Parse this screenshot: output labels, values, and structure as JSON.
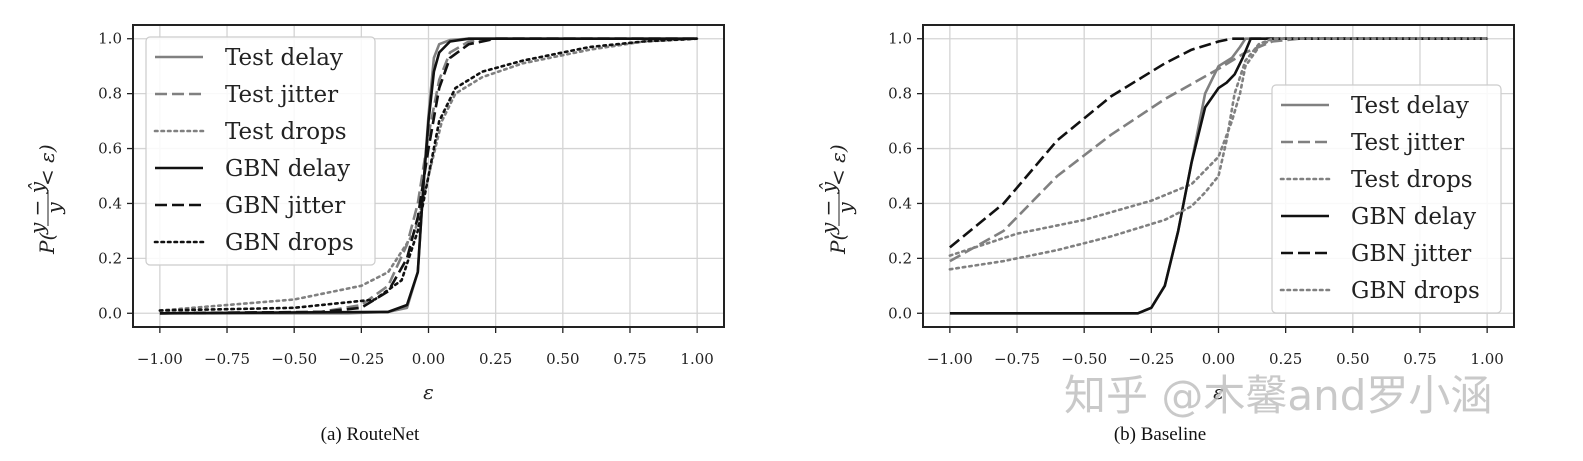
{
  "chart_data": [
    {
      "type": "line",
      "caption": "(a) RouteNet",
      "xlabel": "ε",
      "ylabel": "P(",
      "ylabel_frac_num": "y − ŷ",
      "ylabel_frac_den": "y",
      "ylabel_tail": "< ε)",
      "xlim": [
        -1.1,
        1.1
      ],
      "ylim": [
        -0.05,
        1.05
      ],
      "xticks": [
        "−1.00",
        "−0.75",
        "−0.50",
        "−0.25",
        "0.00",
        "0.25",
        "0.50",
        "0.75",
        "1.00"
      ],
      "yticks": [
        "0.0",
        "0.2",
        "0.4",
        "0.6",
        "0.8",
        "1.0"
      ],
      "grid": true,
      "legend_position": "top-left",
      "series": [
        {
          "name": "Test delay",
          "color": "#808080",
          "dash": "solid",
          "x": [
            -1.0,
            -0.3,
            -0.15,
            -0.08,
            -0.04,
            -0.02,
            0.0,
            0.02,
            0.04,
            0.08,
            0.15,
            1.0
          ],
          "y": [
            0.0,
            0.0,
            0.005,
            0.02,
            0.15,
            0.45,
            0.72,
            0.93,
            0.98,
            0.995,
            1.0,
            1.0
          ]
        },
        {
          "name": "Test jitter",
          "color": "#808080",
          "dash": "dashed",
          "x": [
            -1.0,
            -0.4,
            -0.25,
            -0.15,
            -0.08,
            -0.04,
            0.0,
            0.04,
            0.08,
            0.15,
            0.25,
            1.0
          ],
          "y": [
            0.0,
            0.005,
            0.03,
            0.1,
            0.25,
            0.4,
            0.65,
            0.85,
            0.95,
            0.99,
            1.0,
            1.0
          ]
        },
        {
          "name": "Test drops",
          "color": "#808080",
          "dash": "dotted",
          "x": [
            -1.0,
            -0.5,
            -0.25,
            -0.15,
            -0.05,
            0.0,
            0.05,
            0.1,
            0.2,
            0.35,
            0.6,
            0.8,
            1.0
          ],
          "y": [
            0.01,
            0.05,
            0.1,
            0.15,
            0.3,
            0.5,
            0.7,
            0.8,
            0.86,
            0.91,
            0.96,
            0.99,
            1.0
          ]
        },
        {
          "name": "GBN delay",
          "color": "#111111",
          "dash": "solid",
          "x": [
            -1.0,
            -0.15,
            -0.08,
            -0.04,
            -0.02,
            0.0,
            0.02,
            0.04,
            0.08,
            0.15,
            1.0
          ],
          "y": [
            0.0,
            0.005,
            0.03,
            0.15,
            0.45,
            0.7,
            0.88,
            0.95,
            0.99,
            1.0,
            1.0
          ]
        },
        {
          "name": "GBN jitter",
          "color": "#111111",
          "dash": "dashed",
          "x": [
            -1.0,
            -0.4,
            -0.25,
            -0.15,
            -0.08,
            -0.04,
            0.0,
            0.04,
            0.08,
            0.15,
            0.25,
            1.0
          ],
          "y": [
            0.0,
            0.005,
            0.02,
            0.08,
            0.2,
            0.35,
            0.6,
            0.82,
            0.93,
            0.98,
            1.0,
            1.0
          ]
        },
        {
          "name": "GBN drops",
          "color": "#111111",
          "dash": "dotted",
          "x": [
            -1.0,
            -0.5,
            -0.2,
            -0.1,
            -0.04,
            0.0,
            0.04,
            0.1,
            0.2,
            0.35,
            0.6,
            0.8,
            1.0
          ],
          "y": [
            0.01,
            0.02,
            0.05,
            0.12,
            0.3,
            0.5,
            0.7,
            0.82,
            0.88,
            0.92,
            0.97,
            0.99,
            1.0
          ]
        }
      ]
    },
    {
      "type": "line",
      "caption": "(b) Baseline",
      "xlabel": "ε",
      "ylabel": "P(",
      "ylabel_frac_num": "y − ŷ",
      "ylabel_frac_den": "y",
      "ylabel_tail": "< ε)",
      "xlim": [
        -1.1,
        1.1
      ],
      "ylim": [
        -0.05,
        1.05
      ],
      "xticks": [
        "−1.00",
        "−0.75",
        "−0.50",
        "−0.25",
        "0.00",
        "0.25",
        "0.50",
        "0.75",
        "1.00"
      ],
      "yticks": [
        "0.0",
        "0.2",
        "0.4",
        "0.6",
        "0.8",
        "1.0"
      ],
      "grid": true,
      "legend_position": "center-right",
      "series": [
        {
          "name": "Test delay",
          "color": "#808080",
          "dash": "solid",
          "x": [
            -1.0,
            -0.3,
            -0.25,
            -0.2,
            -0.15,
            -0.1,
            -0.05,
            0.0,
            0.05,
            0.08,
            0.1,
            1.0
          ],
          "y": [
            0.0,
            0.0,
            0.02,
            0.1,
            0.3,
            0.55,
            0.8,
            0.9,
            0.93,
            0.97,
            1.0,
            1.0
          ]
        },
        {
          "name": "Test jitter",
          "color": "#808080",
          "dash": "dashed",
          "x": [
            -1.0,
            -0.8,
            -0.6,
            -0.4,
            -0.2,
            0.0,
            0.1,
            0.2,
            0.3,
            0.5,
            1.0
          ],
          "y": [
            0.19,
            0.3,
            0.5,
            0.65,
            0.78,
            0.89,
            0.95,
            0.99,
            1.0,
            1.0,
            1.0
          ]
        },
        {
          "name": "Test drops",
          "color": "#808080",
          "dash": "dotted",
          "x": [
            -1.0,
            -0.75,
            -0.5,
            -0.25,
            -0.1,
            0.0,
            0.05,
            0.08,
            0.1,
            0.15,
            0.2,
            1.0
          ],
          "y": [
            0.21,
            0.29,
            0.34,
            0.41,
            0.47,
            0.57,
            0.7,
            0.8,
            0.9,
            0.97,
            1.0,
            1.0
          ]
        },
        {
          "name": "GBN delay",
          "color": "#111111",
          "dash": "solid",
          "x": [
            -1.0,
            -0.3,
            -0.25,
            -0.2,
            -0.15,
            -0.1,
            -0.05,
            0.0,
            0.03,
            0.06,
            0.09,
            0.12,
            1.0
          ],
          "y": [
            0.0,
            0.0,
            0.02,
            0.1,
            0.3,
            0.55,
            0.75,
            0.82,
            0.84,
            0.87,
            0.93,
            1.0,
            1.0
          ]
        },
        {
          "name": "GBN jitter",
          "color": "#111111",
          "dash": "dashed",
          "x": [
            -1.0,
            -0.8,
            -0.6,
            -0.4,
            -0.2,
            -0.1,
            0.0,
            0.05,
            0.1,
            1.0
          ],
          "y": [
            0.24,
            0.4,
            0.63,
            0.79,
            0.91,
            0.96,
            0.99,
            1.0,
            1.0,
            1.0
          ]
        },
        {
          "name": "GBN drops",
          "color": "#808080",
          "dash": "dotted",
          "x": [
            -1.0,
            -0.8,
            -0.6,
            -0.4,
            -0.2,
            -0.1,
            -0.05,
            0.0,
            0.03,
            0.06,
            0.1,
            0.15,
            0.2,
            1.0
          ],
          "y": [
            0.16,
            0.19,
            0.23,
            0.28,
            0.34,
            0.39,
            0.44,
            0.5,
            0.63,
            0.8,
            0.92,
            0.98,
            1.0,
            1.0
          ]
        }
      ]
    }
  ],
  "watermark": "知乎 @木馨and罗小涵"
}
